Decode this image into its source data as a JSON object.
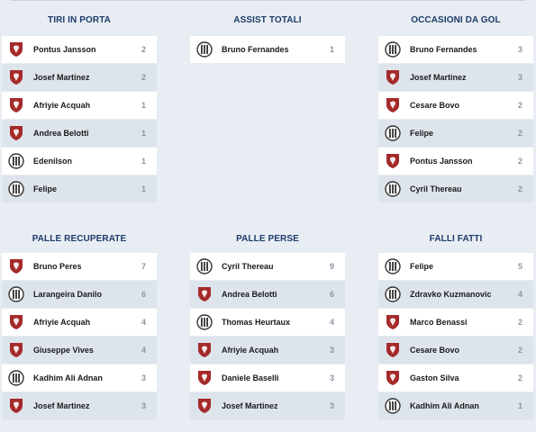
{
  "sections": [
    {
      "title": "TIRI IN PORTA",
      "rows": [
        {
          "team": "torino",
          "name": "Pontus Jansson",
          "value": "2"
        },
        {
          "team": "torino",
          "name": "Josef Martinez",
          "value": "2"
        },
        {
          "team": "torino",
          "name": "Afriyie Acquah",
          "value": "1"
        },
        {
          "team": "torino",
          "name": "Andrea Belotti",
          "value": "1"
        },
        {
          "team": "udinese",
          "name": "Edenilson",
          "value": "1"
        },
        {
          "team": "udinese",
          "name": "Felipe",
          "value": "1"
        }
      ]
    },
    {
      "title": "ASSIST TOTALI",
      "rows": [
        {
          "team": "udinese",
          "name": "Bruno Fernandes",
          "value": "1"
        }
      ]
    },
    {
      "title": "OCCASIONI DA GOL",
      "rows": [
        {
          "team": "udinese",
          "name": "Bruno Fernandes",
          "value": "3"
        },
        {
          "team": "torino",
          "name": "Josef Martinez",
          "value": "3"
        },
        {
          "team": "torino",
          "name": "Cesare Bovo",
          "value": "2"
        },
        {
          "team": "udinese",
          "name": "Felipe",
          "value": "2"
        },
        {
          "team": "torino",
          "name": "Pontus Jansson",
          "value": "2"
        },
        {
          "team": "udinese",
          "name": "Cyril Thereau",
          "value": "2"
        }
      ]
    },
    {
      "title": "PALLE RECUPERATE",
      "rows": [
        {
          "team": "torino",
          "name": "Bruno Peres",
          "value": "7"
        },
        {
          "team": "udinese",
          "name": "Larangeira Danilo",
          "value": "6"
        },
        {
          "team": "torino",
          "name": "Afriyie Acquah",
          "value": "4"
        },
        {
          "team": "torino",
          "name": "Giuseppe Vives",
          "value": "4"
        },
        {
          "team": "udinese",
          "name": "Kadhim Ali Adnan",
          "value": "3"
        },
        {
          "team": "torino",
          "name": "Josef Martinez",
          "value": "3"
        }
      ]
    },
    {
      "title": "PALLE PERSE",
      "rows": [
        {
          "team": "udinese",
          "name": "Cyril Thereau",
          "value": "9"
        },
        {
          "team": "torino",
          "name": "Andrea Belotti",
          "value": "6"
        },
        {
          "team": "udinese",
          "name": "Thomas Heurtaux",
          "value": "4"
        },
        {
          "team": "torino",
          "name": "Afriyie Acquah",
          "value": "3"
        },
        {
          "team": "torino",
          "name": "Daniele Baselli",
          "value": "3"
        },
        {
          "team": "torino",
          "name": "Josef Martinez",
          "value": "3"
        }
      ]
    },
    {
      "title": "FALLI FATTI",
      "rows": [
        {
          "team": "udinese",
          "name": "Felipe",
          "value": "5"
        },
        {
          "team": "udinese",
          "name": "Zdravko Kuzmanovic",
          "value": "4"
        },
        {
          "team": "torino",
          "name": "Marco Benassi",
          "value": "2"
        },
        {
          "team": "torino",
          "name": "Cesare Bovo",
          "value": "2"
        },
        {
          "team": "torino",
          "name": "Gaston Silva",
          "value": "2"
        },
        {
          "team": "udinese",
          "name": "Kadhim Ali Adnan",
          "value": "1"
        }
      ]
    }
  ],
  "team_icons": {
    "torino": "torino-crest-icon",
    "udinese": "udinese-crest-icon"
  },
  "colors": {
    "title": "#1d3b6a",
    "torino": "#a52a2a",
    "udinese": "#333333",
    "row_alt": "#dde4ec",
    "background": "#e8edf3"
  }
}
